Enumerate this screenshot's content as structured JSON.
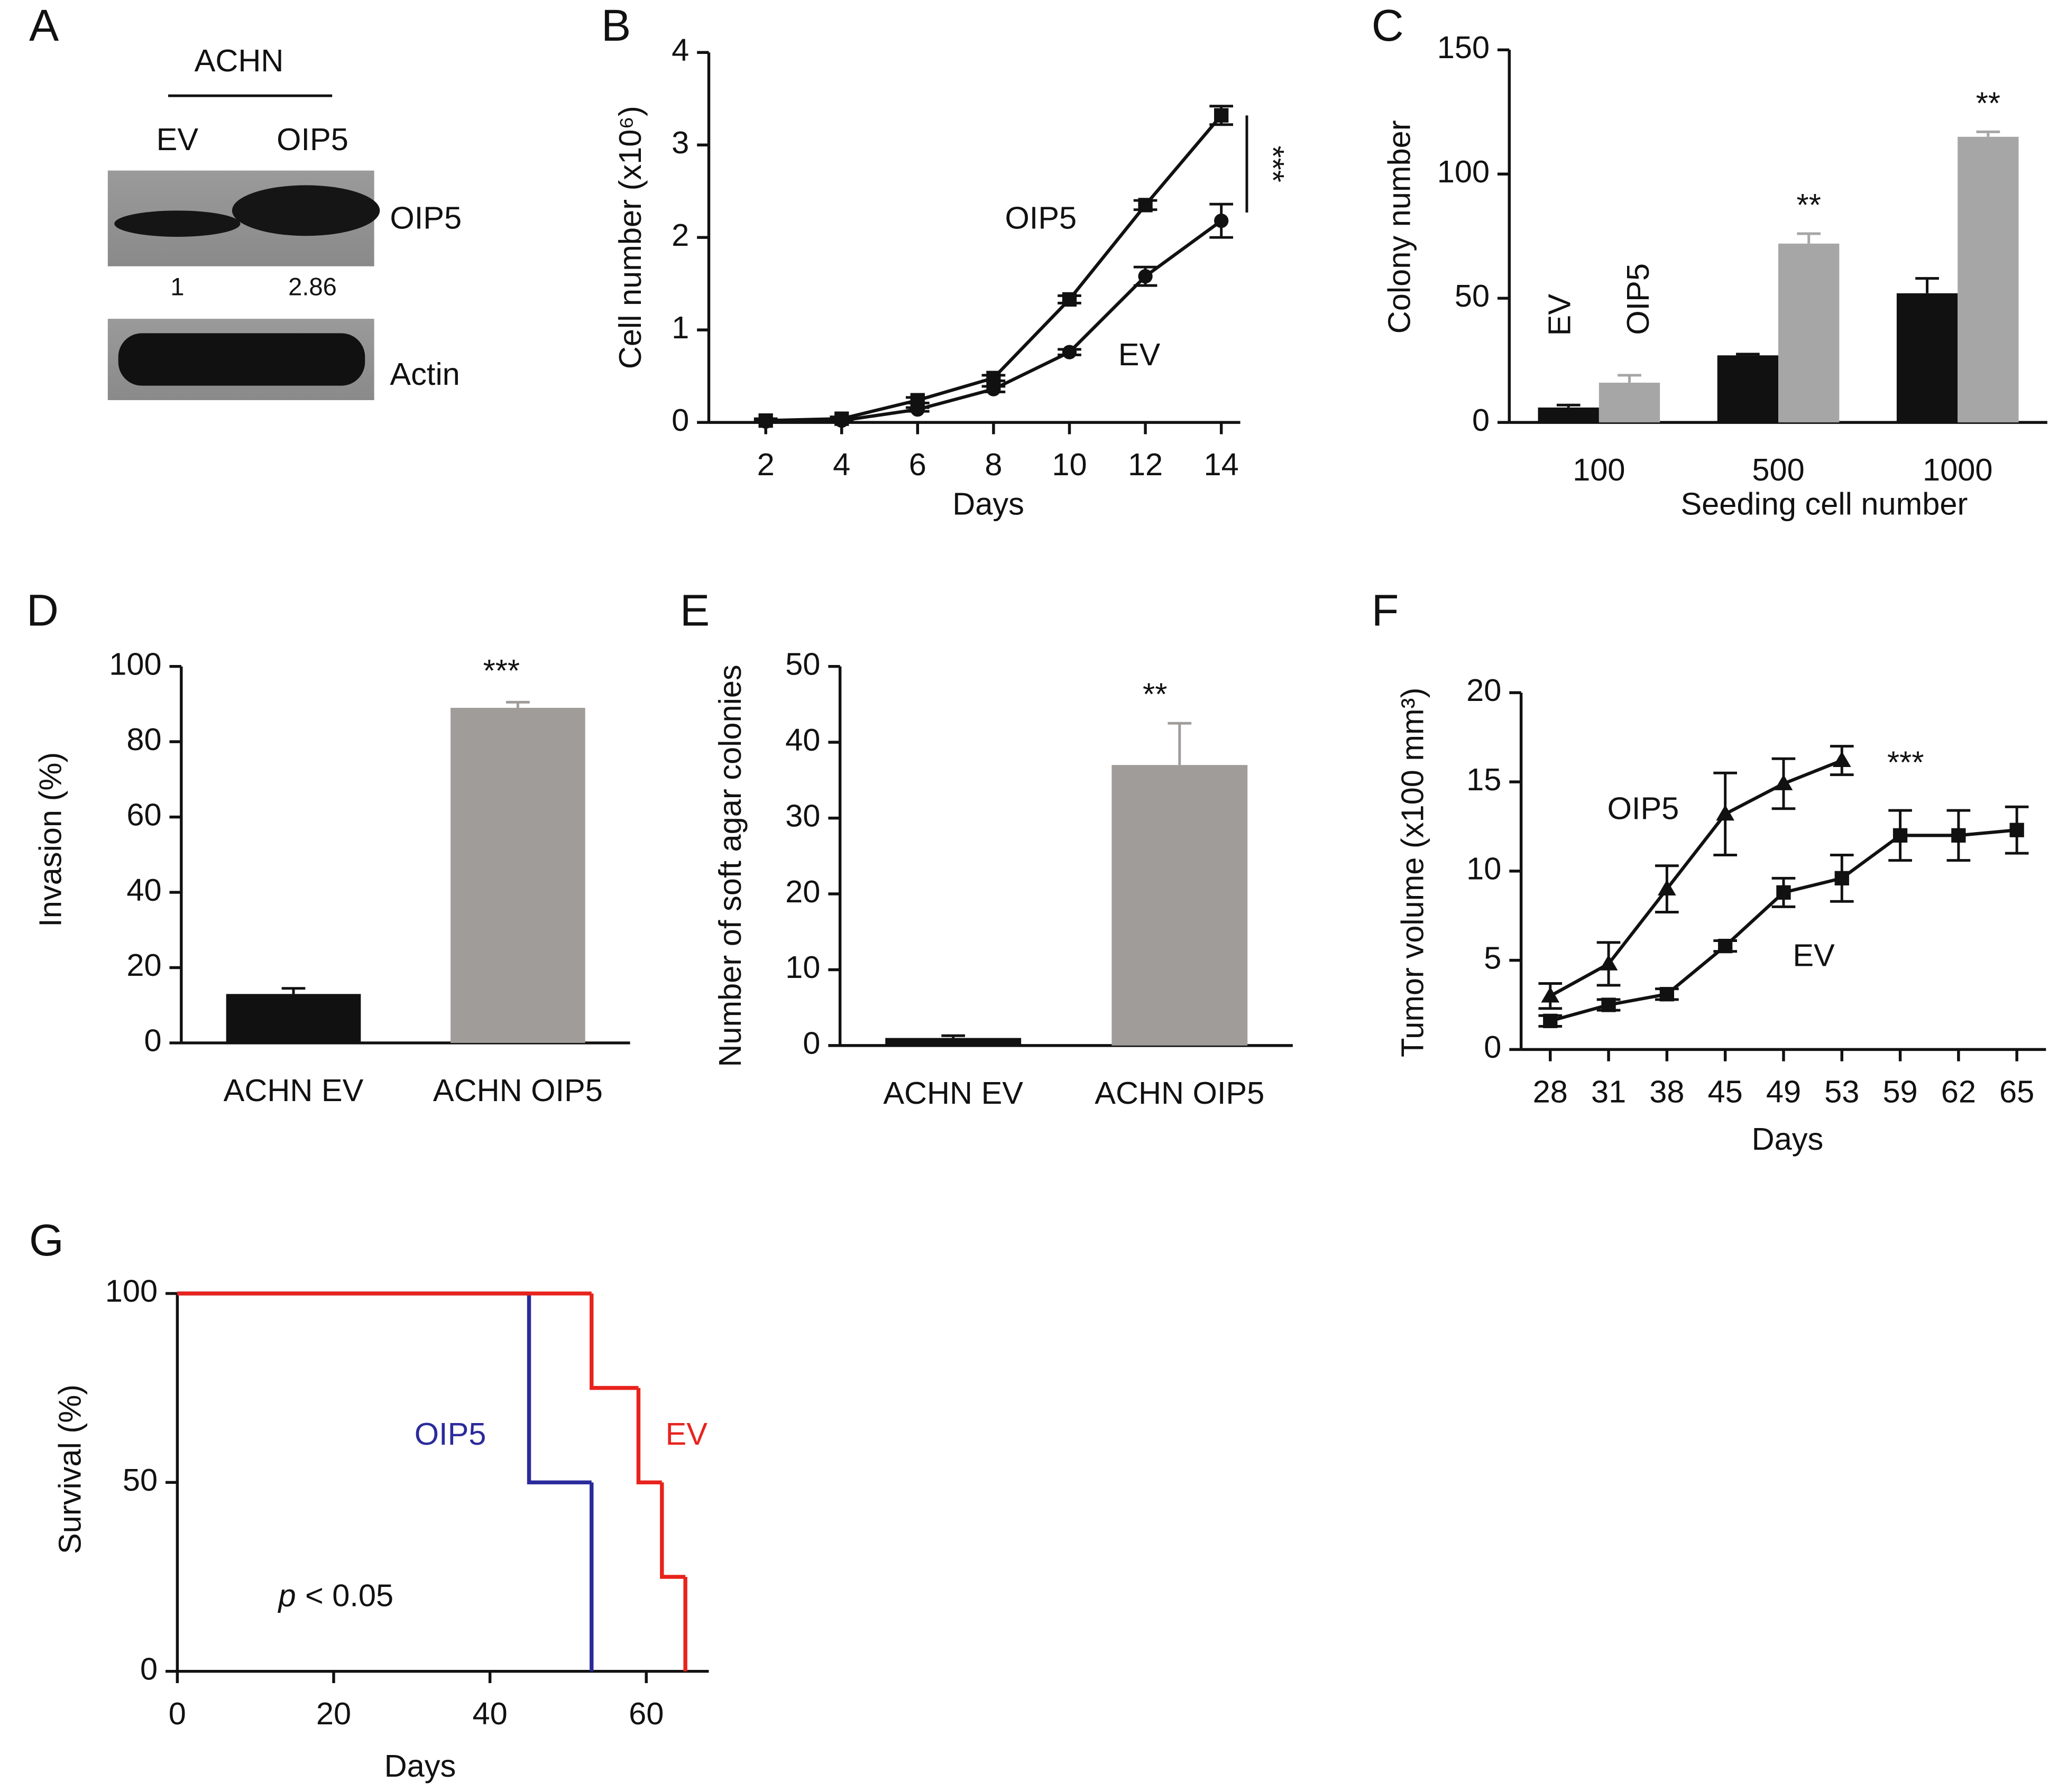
{
  "chart_data": [
    {
      "panel": "A",
      "type": "blot",
      "title": "ACHN",
      "categories": [
        "EV",
        "OIP5"
      ],
      "bands": [
        "OIP5",
        "Actin"
      ],
      "values": [
        1,
        2.86
      ]
    },
    {
      "panel": "B",
      "type": "line",
      "xlabel": "Days",
      "ylabel": "Cell number (x10⁶)",
      "x": [
        2,
        4,
        6,
        8,
        10,
        12,
        14
      ],
      "xlim": [
        0.5,
        14.5
      ],
      "xticks": [
        2,
        4,
        6,
        8,
        10,
        12,
        14
      ],
      "ylim": [
        0,
        4
      ],
      "yticks": [
        0,
        1,
        2,
        3,
        4
      ],
      "series": [
        {
          "name": "OIP5",
          "marker": "square",
          "color": "#111111",
          "values": [
            0.02,
            0.04,
            0.24,
            0.48,
            1.33,
            2.35,
            3.32
          ],
          "errors": [
            0.02,
            0.02,
            0.03,
            0.03,
            0.04,
            0.05,
            0.1
          ]
        },
        {
          "name": "EV",
          "marker": "circle",
          "color": "#111111",
          "values": [
            0.01,
            0.02,
            0.14,
            0.36,
            0.76,
            1.58,
            2.18
          ],
          "errors": [
            0.01,
            0.01,
            0.02,
            0.03,
            0.03,
            0.1,
            0.18
          ]
        }
      ],
      "annotation": "***"
    },
    {
      "panel": "C",
      "type": "bar",
      "xlabel": "Seeding cell number",
      "ylabel": "Colony number",
      "categories": [
        "100",
        "500",
        "1000"
      ],
      "ylim": [
        0,
        150
      ],
      "yticks": [
        0,
        50,
        100,
        150
      ],
      "series": [
        {
          "name": "EV",
          "color": "#111111",
          "values": [
            6,
            27,
            52
          ],
          "errors": [
            1,
            0.5,
            6
          ]
        },
        {
          "name": "OIP5",
          "color": "#a6a6a6",
          "values": [
            16,
            72,
            115
          ],
          "errors": [
            3,
            4,
            2
          ]
        }
      ],
      "annotations": [
        "**",
        "**"
      ]
    },
    {
      "panel": "D",
      "type": "bar",
      "ylabel": "Invasion (%)",
      "categories": [
        "ACHN EV",
        "ACHN OIP5"
      ],
      "values": [
        13,
        89
      ],
      "errors": [
        1.5,
        1.5
      ],
      "colors": [
        "#111111",
        "#a09c9a"
      ],
      "ylim": [
        0,
        100
      ],
      "yticks": [
        0,
        20,
        40,
        60,
        80,
        100
      ],
      "annotation": "***"
    },
    {
      "panel": "E",
      "type": "bar",
      "ylabel": "Number of soft agar colonies",
      "categories": [
        "ACHN EV",
        "ACHN OIP5"
      ],
      "values": [
        1,
        37
      ],
      "errors": [
        0.3,
        5.5
      ],
      "colors": [
        "#111111",
        "#a09c9a"
      ],
      "ylim": [
        0,
        50
      ],
      "yticks": [
        0,
        10,
        20,
        30,
        40,
        50
      ],
      "annotation": "**"
    },
    {
      "panel": "F",
      "type": "line",
      "xlabel": "Days",
      "ylabel": "Tumor volume (x100 mm³)",
      "categories": [
        "28",
        "31",
        "38",
        "45",
        "49",
        "53",
        "59",
        "62",
        "65"
      ],
      "ylim": [
        0,
        20
      ],
      "yticks": [
        0,
        5,
        10,
        15,
        20
      ],
      "series": [
        {
          "name": "OIP5",
          "marker": "triangle",
          "color": "#111111",
          "values": [
            3,
            4.8,
            9,
            13.2,
            14.9,
            16.2,
            null,
            null,
            null
          ],
          "errors": [
            0.7,
            1.2,
            1.3,
            2.3,
            1.4,
            0.8,
            null,
            null,
            null
          ]
        },
        {
          "name": "EV",
          "marker": "square",
          "color": "#111111",
          "values": [
            1.6,
            2.5,
            3.1,
            5.8,
            8.8,
            9.6,
            12,
            12,
            12.3
          ],
          "errors": [
            0.3,
            0.3,
            0.3,
            0.3,
            0.8,
            1.3,
            1.4,
            1.4,
            1.3
          ]
        }
      ],
      "annotation": "***"
    },
    {
      "panel": "G",
      "type": "step",
      "xlabel": "Days",
      "ylabel": "Survival (%)",
      "xlim": [
        0,
        68
      ],
      "xticks": [
        0,
        20,
        40,
        60
      ],
      "ylim": [
        0,
        100
      ],
      "yticks": [
        0,
        50,
        100
      ],
      "series": [
        {
          "name": "OIP5",
          "color": "#2b2b9c",
          "x": [
            0,
            45,
            53
          ],
          "values": [
            100,
            50,
            0
          ]
        },
        {
          "name": "EV",
          "color": "#e8231d",
          "x": [
            0,
            53,
            59,
            62,
            65
          ],
          "values": [
            100,
            75,
            50,
            25,
            0
          ]
        }
      ],
      "annotation": [
        "p",
        "< 0.05"
      ]
    }
  ]
}
